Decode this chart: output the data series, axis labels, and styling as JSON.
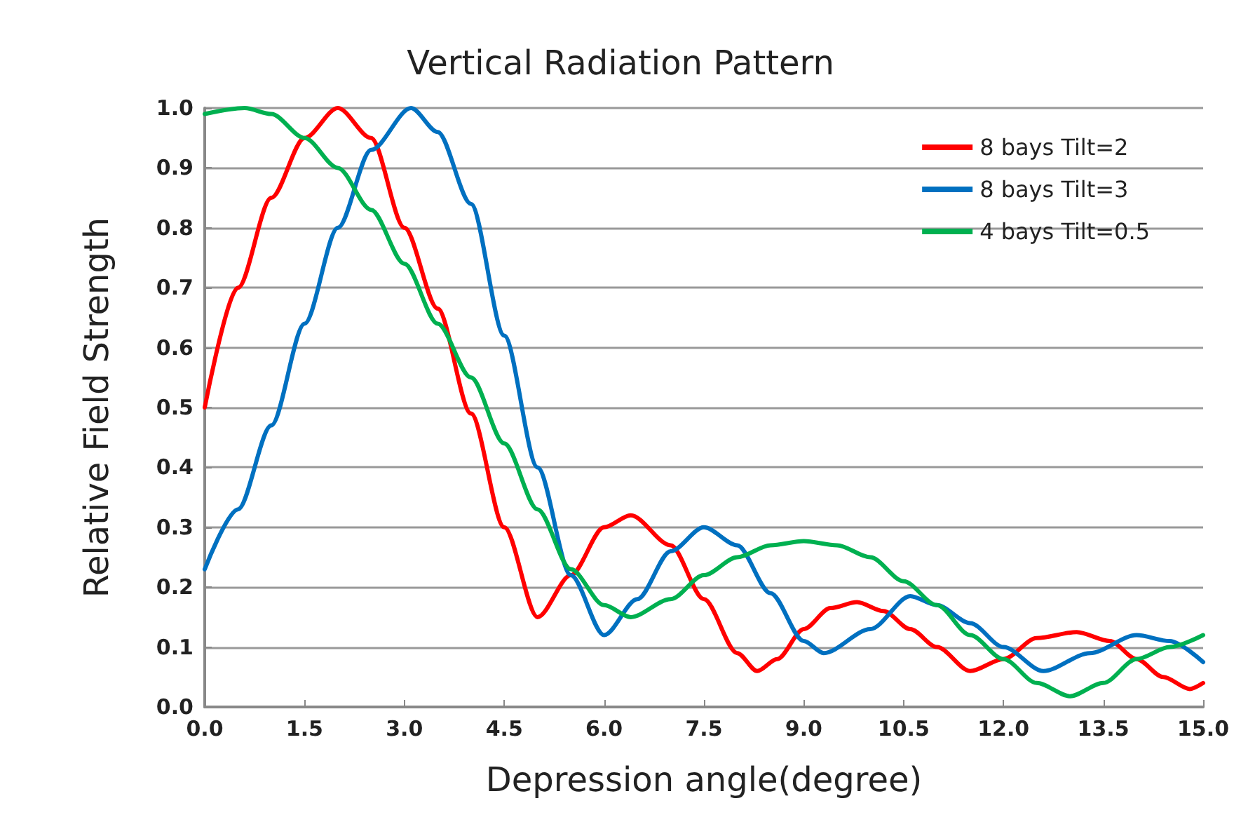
{
  "chart_data": {
    "type": "line",
    "title": "Vertical Radiation Pattern",
    "xlabel": "Depression angle(degree)",
    "ylabel": "Relative Field Strength",
    "x": [
      0,
      0.5,
      1,
      1.5,
      2,
      2.5,
      3,
      3.5,
      4,
      4.5,
      5,
      5.5,
      6,
      6.4,
      7,
      7.5,
      8,
      8.3,
      8.6,
      9,
      9.4,
      9.8,
      10.2,
      10.6,
      11,
      11.5,
      12,
      12.5,
      13.1,
      13.6,
      14,
      14.4,
      14.8,
      15
    ],
    "series": [
      {
        "name": "8 bays Tilt=2",
        "color": "#ff0000",
        "values": [
          0.5,
          0.7,
          0.85,
          0.95,
          1.0,
          0.95,
          0.8,
          0.665,
          0.49,
          0.3,
          0.15,
          0.22,
          0.3,
          0.32,
          0.27,
          0.18,
          0.09,
          0.06,
          0.08,
          0.13,
          0.165,
          0.175,
          0.16,
          0.13,
          0.1,
          0.06,
          0.08,
          0.115,
          0.125,
          0.11,
          0.08,
          0.05,
          0.03,
          0.04
        ]
      },
      {
        "name": "8 bays Tilt=3",
        "color": "#0070c0",
        "x": [
          0,
          0.5,
          1,
          1.5,
          2,
          2.5,
          3.1,
          3.5,
          4,
          4.5,
          5,
          5.5,
          6,
          6.5,
          7,
          7.5,
          8,
          8.5,
          9,
          9.3,
          10,
          10.6,
          11,
          11.5,
          12,
          12.6,
          13.3,
          14,
          14.5,
          15
        ],
        "values": [
          0.23,
          0.33,
          0.47,
          0.64,
          0.8,
          0.93,
          1.0,
          0.96,
          0.84,
          0.62,
          0.4,
          0.22,
          0.12,
          0.18,
          0.26,
          0.3,
          0.27,
          0.19,
          0.11,
          0.09,
          0.13,
          0.185,
          0.17,
          0.14,
          0.1,
          0.06,
          0.09,
          0.12,
          0.11,
          0.075
        ]
      },
      {
        "name": "4 bays Tilt=0.5",
        "color": "#00b050",
        "x": [
          0,
          0.6,
          1,
          1.5,
          2,
          2.5,
          3,
          3.5,
          4,
          4.5,
          5,
          5.5,
          6,
          6.4,
          7,
          7.5,
          8,
          8.5,
          9,
          9.5,
          10,
          10.5,
          11,
          11.5,
          12,
          12.5,
          13,
          13.5,
          14,
          14.5,
          15
        ],
        "values": [
          0.99,
          1.0,
          0.99,
          0.95,
          0.9,
          0.83,
          0.74,
          0.64,
          0.55,
          0.44,
          0.33,
          0.23,
          0.17,
          0.15,
          0.18,
          0.22,
          0.25,
          0.27,
          0.277,
          0.27,
          0.25,
          0.21,
          0.17,
          0.12,
          0.08,
          0.04,
          0.018,
          0.04,
          0.08,
          0.1,
          0.12
        ]
      }
    ],
    "xlim": [
      0,
      15
    ],
    "xticks": [
      {
        "value": 0,
        "label": "0.0"
      },
      1.5,
      {
        "value": 3,
        "label": "3.0"
      },
      4.5,
      {
        "value": 6,
        "label": "6.0"
      },
      7.5,
      {
        "value": 9,
        "label": "9.0"
      },
      10.5,
      {
        "value": 12,
        "label": "12.0"
      },
      13.5,
      {
        "value": 15,
        "label": "15.0"
      }
    ],
    "ylim": [
      0,
      1
    ],
    "yticks": [
      {
        "value": 0,
        "label": "0.0"
      },
      0.1,
      0.2,
      0.3,
      0.4,
      0.5,
      0.6,
      0.7,
      0.8,
      0.9,
      {
        "value": 1,
        "label": "1.0"
      }
    ],
    "grid": "y",
    "legend": "top right",
    "marker": "none",
    "line_style": "solid"
  }
}
